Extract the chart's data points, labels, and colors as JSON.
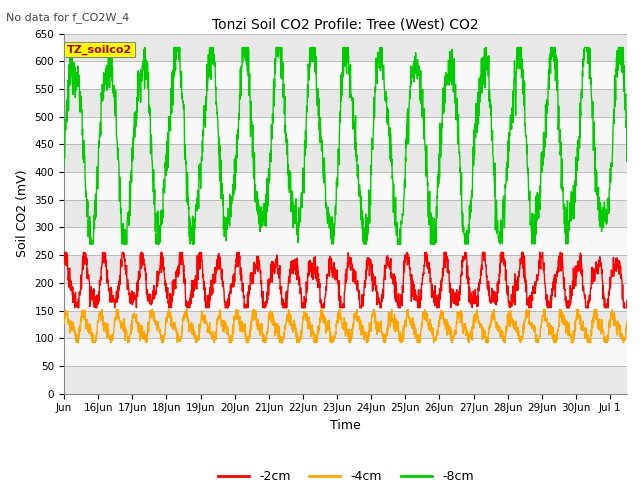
{
  "title": "Tonzi Soil CO2 Profile: Tree (West) CO2",
  "subtitle": "No data for f_CO2W_4",
  "xlabel": "Time",
  "ylabel": "Soil CO2 (mV)",
  "ylim": [
    0,
    650
  ],
  "yticks": [
    0,
    50,
    100,
    150,
    200,
    250,
    300,
    350,
    400,
    450,
    500,
    550,
    600,
    650
  ],
  "legend_labels": [
    "-2cm",
    "-4cm",
    "-8cm"
  ],
  "legend_colors": [
    "#ff0000",
    "#ffa500",
    "#00cc00"
  ],
  "line_colors": {
    "neg2cm": "#ff0000",
    "neg4cm": "#ffa500",
    "neg8cm": "#00cc00"
  },
  "tz_soilco2_box_color": "#ffff00",
  "tz_soilco2_text_color": "#aa0000",
  "background_stripe_colors": [
    "#e8e8e8",
    "#f8f8f8"
  ],
  "x_tick_labels": [
    "Jun",
    "16Jun",
    "17Jun",
    "18Jun",
    "19Jun",
    "20Jun",
    "21Jun",
    "22Jun",
    "23Jun",
    "24Jun",
    "25Jun",
    "26Jun",
    "27Jun",
    "28Jun",
    "29Jun",
    "30Jun",
    "Jul 1"
  ],
  "figsize": [
    6.4,
    4.8
  ],
  "dpi": 100
}
